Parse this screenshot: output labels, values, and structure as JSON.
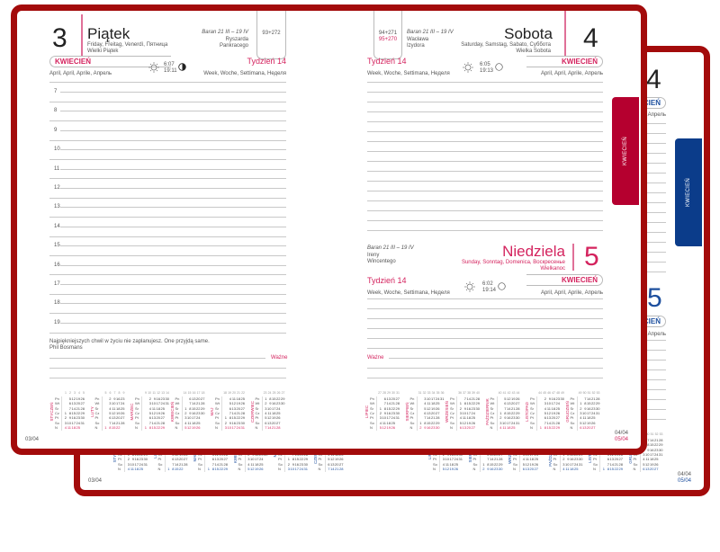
{
  "left_page": {
    "day_number": "3",
    "day_name": "Piątek",
    "day_name_translations": "Friday, Freitag, Venerdì, Пятница",
    "holiday": "Wielki Piątek",
    "zodiac": "Baran 21 III – 19 IV",
    "name_days": [
      "Ryszarda",
      "Pankracego"
    ],
    "day_count": "93+272",
    "month": "KWIECIEŃ",
    "month_translations": "April, April, Aprile, Апрель",
    "week": "Tydzień 14",
    "week_translations": "Week, Woche, Settimana, Неделя",
    "sunrise": "6:07",
    "sunset": "19:11",
    "moon_icon": "moon-first-quarter-icon",
    "hours": [
      "7",
      "8",
      "9",
      "10",
      "11",
      "12",
      "13",
      "14",
      "15",
      "16",
      "17",
      "18",
      "19"
    ],
    "quote": "Najpiękniejszych chwil w życiu nie zaplanujesz. One przyjdą same.",
    "quote_author": "Phil Bosmans",
    "important_label": "Ważne",
    "page_date": "03/04"
  },
  "right_page": {
    "saturday": {
      "day_number": "4",
      "day_name": "Sobota",
      "day_name_translations": "Saturday, Samstag, Sabato, Суббота",
      "holiday": "Wielka Sobota",
      "zodiac": "Baran 21 III – 19 IV",
      "name_days": [
        "Wacława",
        "Izydora"
      ],
      "day_count": "94+271",
      "day_count_2": "95+270",
      "month": "KWIECIEŃ",
      "month_translations": "April, April, Aprile, Апрель",
      "week": "Tydzień 14",
      "week_translations": "Week, Woche, Settimana, Неделя",
      "sunrise": "6:05",
      "sunset": "19:13",
      "moon_icon": "full-moon-icon"
    },
    "sunday": {
      "day_number": "5",
      "day_name": "Niedziela",
      "day_name_translations": "Sunday, Sonntag, Domenica, Воскресенье",
      "holiday": "Wielkanoc",
      "zodiac": "Baran 21 III – 19 IV",
      "name_days": [
        "Ireny",
        "Wincentego"
      ],
      "month": "KWIECIEŃ",
      "month_translations": "April, April, Aprile, Апрель",
      "week": "Tydzień 14",
      "week_translations": "Week, Woche, Settimana, Неделя",
      "sunrise": "6:02",
      "sunset": "19:14",
      "moon_icon": "full-moon-icon"
    },
    "important_label": "Ważne",
    "page_dates": [
      "04/04",
      "05/04"
    ]
  },
  "month_tab": "KWIECIEŃ",
  "colors": {
    "cover_red": "#a30b0b",
    "accent_pink": "#d4235e",
    "tab_red": "#b5002f",
    "accent_blue": "#1d4f9e",
    "tab_blue": "#0b3c8a"
  },
  "mini_calendars": {
    "weekday_labels": [
      "Pn",
      "Wt",
      "Śr",
      "Cz",
      "Pt",
      "So",
      "N"
    ],
    "months": [
      {
        "name": "STYCZEŃ",
        "weeks": [
          "1",
          "2",
          "3",
          "4",
          "5"
        ],
        "rows": [
          [
            "",
            "5",
            "12",
            "19",
            "26"
          ],
          [
            "",
            "6",
            "13",
            "20",
            "27"
          ],
          [
            "",
            "7",
            "14",
            "21",
            "28"
          ],
          [
            "1",
            "8",
            "15",
            "22",
            "29"
          ],
          [
            "2",
            "9",
            "16",
            "23",
            "30"
          ],
          [
            "3",
            "10",
            "17",
            "24",
            "31"
          ],
          [
            "4",
            "11",
            "18",
            "25"
          ]
        ]
      },
      {
        "name": "LUTY",
        "weeks": [
          "5",
          "6",
          "7",
          "8",
          "9"
        ],
        "rows": [
          [
            "",
            "2",
            "9",
            "16",
            "23"
          ],
          [
            "",
            "3",
            "10",
            "17",
            "24"
          ],
          [
            "",
            "4",
            "11",
            "18",
            "25"
          ],
          [
            "",
            "5",
            "12",
            "19",
            "26"
          ],
          [
            "",
            "6",
            "13",
            "20",
            "27"
          ],
          [
            "",
            "7",
            "14",
            "21",
            "28"
          ],
          [
            "1",
            "8",
            "15",
            "22"
          ]
        ]
      },
      {
        "name": "MARZEC",
        "weeks": [
          "9",
          "10",
          "11",
          "12",
          "13",
          "14"
        ],
        "rows": [
          [
            "",
            "2",
            "9",
            "16",
            "23",
            "30"
          ],
          [
            "",
            "3",
            "10",
            "17",
            "24",
            "31"
          ],
          [
            "",
            "4",
            "11",
            "18",
            "25"
          ],
          [
            "",
            "5",
            "12",
            "19",
            "26"
          ],
          [
            "",
            "6",
            "13",
            "20",
            "27"
          ],
          [
            "",
            "7",
            "14",
            "21",
            "28"
          ],
          [
            "1",
            "8",
            "15",
            "22",
            "29"
          ]
        ]
      },
      {
        "name": "KWIECIEŃ",
        "weeks": [
          "14",
          "15",
          "16",
          "17",
          "18"
        ],
        "rows": [
          [
            "",
            "6",
            "13",
            "20",
            "27"
          ],
          [
            "",
            "7",
            "14",
            "21",
            "28"
          ],
          [
            "1",
            "8",
            "15",
            "22",
            "29"
          ],
          [
            "2",
            "9",
            "16",
            "23",
            "30"
          ],
          [
            "3",
            "10",
            "17",
            "24"
          ],
          [
            "4",
            "11",
            "18",
            "25"
          ],
          [
            "5",
            "12",
            "19",
            "26"
          ]
        ]
      },
      {
        "name": "MAJ",
        "weeks": [
          "18",
          "19",
          "20",
          "21",
          "22"
        ],
        "rows": [
          [
            "",
            "4",
            "11",
            "18",
            "25"
          ],
          [
            "",
            "5",
            "12",
            "19",
            "26"
          ],
          [
            "",
            "6",
            "13",
            "20",
            "27"
          ],
          [
            "",
            "7",
            "14",
            "21",
            "28"
          ],
          [
            "1",
            "8",
            "15",
            "22",
            "29"
          ],
          [
            "2",
            "9",
            "16",
            "23",
            "30"
          ],
          [
            "3",
            "10",
            "17",
            "24",
            "31"
          ]
        ]
      },
      {
        "name": "CZERWIEC",
        "weeks": [
          "23",
          "24",
          "25",
          "26",
          "27"
        ],
        "rows": [
          [
            "1",
            "8",
            "15",
            "22",
            "29"
          ],
          [
            "2",
            "9",
            "16",
            "23",
            "30"
          ],
          [
            "3",
            "10",
            "17",
            "24"
          ],
          [
            "4",
            "11",
            "18",
            "25"
          ],
          [
            "5",
            "12",
            "19",
            "26"
          ],
          [
            "6",
            "13",
            "20",
            "27"
          ],
          [
            "7",
            "14",
            "21",
            "28"
          ]
        ]
      },
      {
        "name": "LIPIEC",
        "weeks": [
          "27",
          "28",
          "29",
          "30",
          "31"
        ],
        "rows": [
          [
            "",
            "6",
            "13",
            "20",
            "27"
          ],
          [
            "",
            "7",
            "14",
            "21",
            "28"
          ],
          [
            "1",
            "8",
            "15",
            "22",
            "29"
          ],
          [
            "2",
            "9",
            "16",
            "23",
            "30"
          ],
          [
            "3",
            "10",
            "17",
            "24",
            "31"
          ],
          [
            "4",
            "11",
            "18",
            "25"
          ],
          [
            "5",
            "12",
            "19",
            "26"
          ]
        ]
      },
      {
        "name": "SIERPIEŃ",
        "weeks": [
          "31",
          "32",
          "33",
          "34",
          "35",
          "36"
        ],
        "rows": [
          [
            "",
            "3",
            "10",
            "17",
            "24",
            "31"
          ],
          [
            "",
            "4",
            "11",
            "18",
            "25"
          ],
          [
            "",
            "5",
            "12",
            "19",
            "26"
          ],
          [
            "",
            "6",
            "13",
            "20",
            "27"
          ],
          [
            "",
            "7",
            "14",
            "21",
            "28"
          ],
          [
            "1",
            "8",
            "15",
            "22",
            "29"
          ],
          [
            "2",
            "9",
            "16",
            "23",
            "30"
          ]
        ]
      },
      {
        "name": "WRZESIEŃ",
        "weeks": [
          "36",
          "37",
          "38",
          "39",
          "40"
        ],
        "rows": [
          [
            "",
            "7",
            "14",
            "21",
            "28"
          ],
          [
            "1",
            "8",
            "15",
            "22",
            "29"
          ],
          [
            "2",
            "9",
            "16",
            "23",
            "30"
          ],
          [
            "3",
            "10",
            "17",
            "24"
          ],
          [
            "4",
            "11",
            "18",
            "25"
          ],
          [
            "5",
            "12",
            "19",
            "26"
          ],
          [
            "6",
            "13",
            "20",
            "27"
          ]
        ]
      },
      {
        "name": "PAŹDZIERNIK",
        "weeks": [
          "40",
          "41",
          "42",
          "43",
          "44"
        ],
        "rows": [
          [
            "",
            "5",
            "12",
            "19",
            "26"
          ],
          [
            "",
            "6",
            "13",
            "20",
            "27"
          ],
          [
            "",
            "7",
            "14",
            "21",
            "28"
          ],
          [
            "1",
            "8",
            "15",
            "22",
            "29"
          ],
          [
            "2",
            "9",
            "16",
            "23",
            "30"
          ],
          [
            "3",
            "10",
            "17",
            "24",
            "31"
          ],
          [
            "4",
            "11",
            "18",
            "25"
          ]
        ]
      },
      {
        "name": "LISTOPAD",
        "weeks": [
          "44",
          "45",
          "46",
          "47",
          "48",
          "49"
        ],
        "rows": [
          [
            "",
            "2",
            "9",
            "16",
            "23",
            "30"
          ],
          [
            "",
            "3",
            "10",
            "17",
            "24"
          ],
          [
            "",
            "4",
            "11",
            "18",
            "25"
          ],
          [
            "",
            "5",
            "12",
            "19",
            "26"
          ],
          [
            "",
            "6",
            "13",
            "20",
            "27"
          ],
          [
            "",
            "7",
            "14",
            "21",
            "28"
          ],
          [
            "1",
            "8",
            "15",
            "22",
            "29"
          ]
        ]
      },
      {
        "name": "GRUDZIEŃ",
        "weeks": [
          "49",
          "50",
          "51",
          "52",
          "53"
        ],
        "rows": [
          [
            "",
            "7",
            "14",
            "21",
            "28"
          ],
          [
            "1",
            "8",
            "15",
            "22",
            "29"
          ],
          [
            "2",
            "9",
            "16",
            "23",
            "30"
          ],
          [
            "3",
            "10",
            "17",
            "24",
            "31"
          ],
          [
            "4",
            "11",
            "18",
            "25"
          ],
          [
            "5",
            "12",
            "19",
            "26"
          ],
          [
            "6",
            "13",
            "20",
            "27"
          ]
        ]
      }
    ]
  }
}
